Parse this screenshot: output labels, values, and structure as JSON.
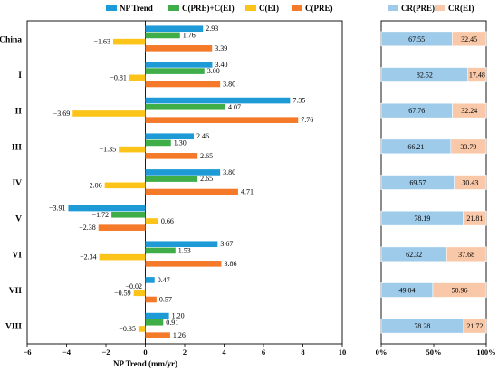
{
  "colors": {
    "np_trend": "#1e9ad6",
    "c_pre_ei": "#3fae49",
    "c_ei": "#fcc419",
    "c_pre": "#f47a29",
    "cr_pre": "#9fcbea",
    "cr_ei": "#f9c8a8"
  },
  "chart_data": [
    {
      "type": "bar",
      "orientation": "horizontal",
      "categories": [
        "China",
        "I",
        "II",
        "III",
        "IV",
        "V",
        "VI",
        "VII",
        "VIII"
      ],
      "series": [
        {
          "name": "NP Trend",
          "values": [
            2.93,
            3.4,
            7.35,
            2.46,
            3.8,
            -3.91,
            3.67,
            0.47,
            1.2
          ],
          "labels": [
            "2.93",
            "3.40",
            "7.35",
            "2.46",
            "3.80",
            "−3.91",
            "3.67",
            "0.47",
            "1.20"
          ]
        },
        {
          "name": "C(PRE)+C(EI)",
          "values": [
            1.76,
            3.0,
            4.07,
            1.3,
            2.65,
            -1.72,
            1.53,
            -0.02,
            0.91
          ],
          "labels": [
            "1.76",
            "3.00",
            "4.07",
            "1.30",
            "2.65",
            "−1.72",
            "1.53",
            "−0.02",
            "0.91"
          ]
        },
        {
          "name": "C(EI)",
          "values": [
            -1.63,
            -0.81,
            -3.69,
            -1.35,
            -2.06,
            0.66,
            -2.34,
            -0.59,
            -0.35
          ],
          "labels": [
            "−1.63",
            "−0.81",
            "−3.69",
            "−1.35",
            "−2.06",
            "0.66",
            "−2.34",
            "−0.59",
            "−0.35"
          ]
        },
        {
          "name": "C(PRE)",
          "values": [
            3.39,
            3.8,
            7.76,
            2.65,
            4.71,
            -2.38,
            3.86,
            0.57,
            1.26
          ],
          "labels": [
            "3.39",
            "3.80",
            "7.76",
            "2.65",
            "4.71",
            "−2.38",
            "3.86",
            "0.57",
            "1.26"
          ]
        }
      ],
      "xlabel": "NP Trend (mm/yr)",
      "xlim": [
        -6,
        10
      ],
      "xticks": [
        -6,
        -4,
        -2,
        0,
        2,
        4,
        6,
        8,
        10
      ],
      "xtick_labels": [
        "−6",
        "−4",
        "−2",
        "0",
        "2",
        "4",
        "6",
        "8",
        "10"
      ],
      "legend_position": "top"
    },
    {
      "type": "bar",
      "orientation": "horizontal",
      "stacked": true,
      "categories": [
        "China",
        "I",
        "II",
        "III",
        "IV",
        "V",
        "VI",
        "VII",
        "VIII"
      ],
      "series": [
        {
          "name": "CR(PRE)",
          "values": [
            67.55,
            82.52,
            67.76,
            66.21,
            69.57,
            78.19,
            62.32,
            49.04,
            78.28
          ],
          "labels": [
            "67.55",
            "82.52",
            "67.76",
            "66.21",
            "69.57",
            "78.19",
            "62.32",
            "49.04",
            "78.28"
          ]
        },
        {
          "name": "CR(EI)",
          "values": [
            32.45,
            17.48,
            32.24,
            33.79,
            30.43,
            21.81,
            37.68,
            50.96,
            21.72
          ],
          "labels": [
            "32.45",
            "17.48",
            "32.24",
            "33.79",
            "30.43",
            "21.81",
            "37.68",
            "50.96",
            "21.72"
          ]
        }
      ],
      "xlim": [
        0,
        100
      ],
      "xticks": [
        0,
        50,
        100
      ],
      "xtick_labels": [
        "0%",
        "50%",
        "100%"
      ],
      "legend_position": "top"
    }
  ]
}
